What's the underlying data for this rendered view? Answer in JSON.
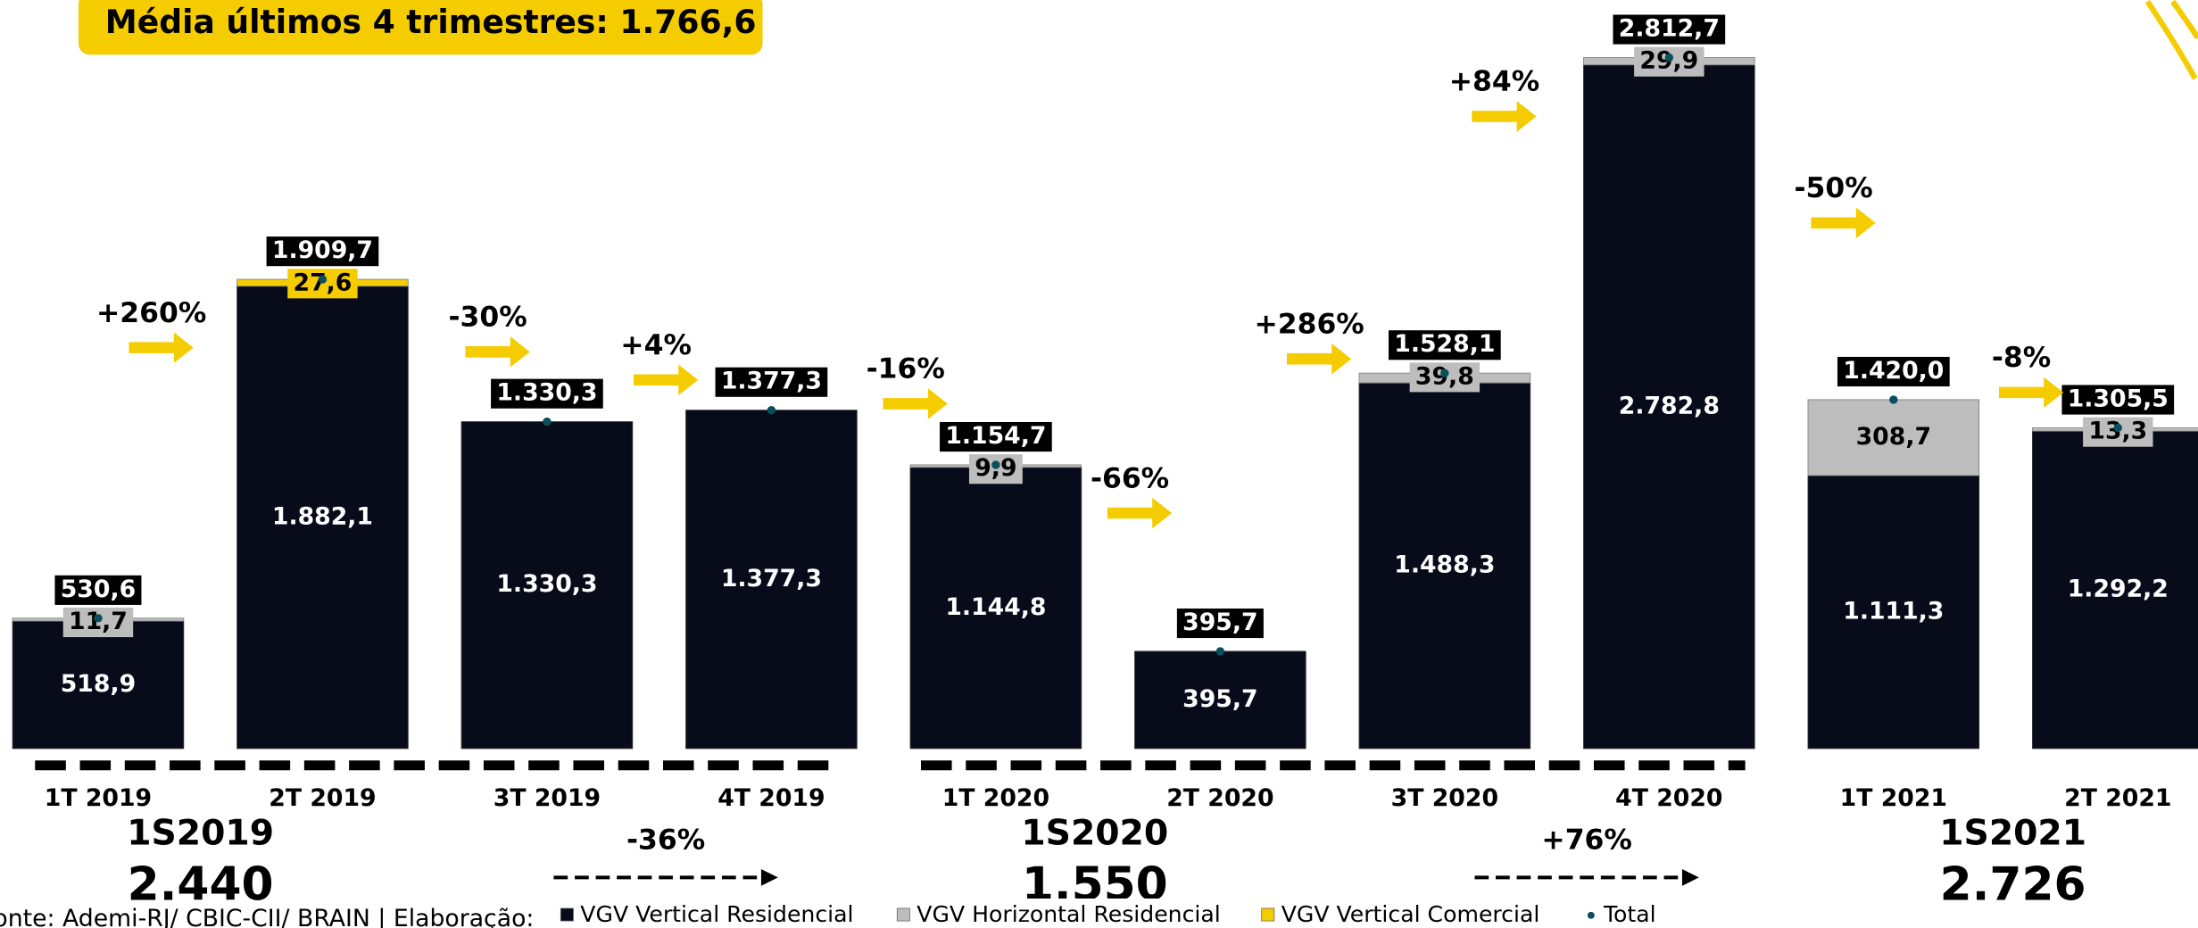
{
  "chart_data": {
    "type": "stacked_bar",
    "title": "Média últimos 4 trimestres: 1.766,6",
    "categories": [
      "1T 2019",
      "2T 2019",
      "3T 2019",
      "4T 2019",
      "1T 2020",
      "2T 2020",
      "3T 2020",
      "4T 2020",
      "1T 2021",
      "2T 2021"
    ],
    "series": [
      {
        "name": "VGV Vertical Residencial",
        "color": "#070b1a",
        "values": [
          518.9,
          1882.1,
          1330.3,
          1377.3,
          1144.8,
          395.7,
          1488.3,
          2782.8,
          1111.3,
          1292.2
        ],
        "value_labels": [
          "518,9",
          "1.882,1",
          "1.330,3",
          "1.377,3",
          "1.144,8",
          "395,7",
          "1.488,3",
          "2.782,8",
          "1.111,3",
          "1.292,2"
        ]
      },
      {
        "name": "VGV Horizontal Residencial",
        "color": "#bdbdbd",
        "values": [
          11.7,
          null,
          null,
          null,
          9.9,
          null,
          39.8,
          29.9,
          308.7,
          13.3
        ],
        "value_labels": [
          "11,7",
          null,
          null,
          null,
          "9,9",
          null,
          "39,8",
          "29,9",
          "308,7",
          "13,3"
        ]
      },
      {
        "name": "VGV Vertical Comercial",
        "color": "#f5cc00",
        "values": [
          null,
          27.6,
          null,
          null,
          null,
          null,
          null,
          null,
          null,
          null
        ],
        "value_labels": [
          null,
          "27,6",
          null,
          null,
          null,
          null,
          null,
          null,
          null,
          null
        ]
      },
      {
        "name": "Total",
        "color": "#0b4f5c",
        "values": [
          530.6,
          1909.7,
          1330.3,
          1377.3,
          1154.7,
          395.7,
          1528.1,
          2812.7,
          1420.0,
          1305.5
        ],
        "value_labels": [
          "530,6",
          "1.909,7",
          "1.330,3",
          "1.377,3",
          "1.154,7",
          "395,7",
          "1.528,1",
          "2.812,7",
          "1.420,0",
          "1.305,5"
        ]
      }
    ],
    "changes": [
      "+260%",
      "-30%",
      "+4%",
      "-16%",
      "-66%",
      "+286%",
      "+84%",
      "-50%",
      "-8%"
    ],
    "semesters": [
      {
        "label": "1S2019",
        "total": "2.440"
      },
      {
        "label": "1S2020",
        "total": "1.550"
      },
      {
        "label": "1S2021",
        "total": "2.726"
      }
    ],
    "semester_changes": [
      "-36%",
      "+76%"
    ],
    "source": "Fonte: Ademi-RJ/ CBIC-CII/ BRAIN | Elaboração:"
  }
}
